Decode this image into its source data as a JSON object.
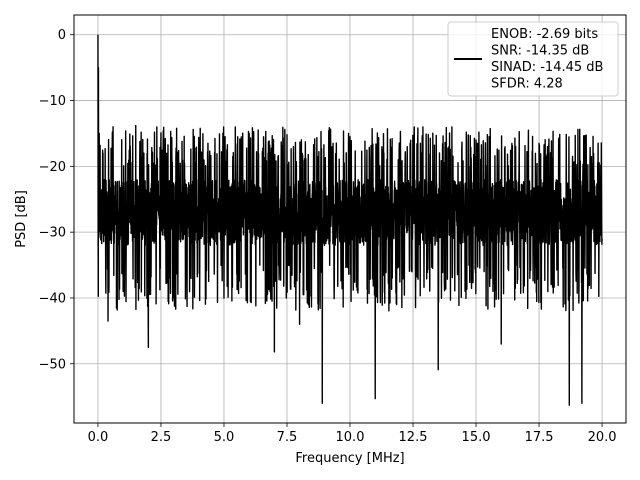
{
  "chart_data": {
    "type": "line",
    "title": "",
    "xlabel": "Frequency [MHz]",
    "ylabel": "PSD [dB]",
    "xlim": [
      -0.95,
      20.95
    ],
    "ylim": [
      -59,
      3
    ],
    "x_ticks": [
      0.0,
      2.5,
      5.0,
      7.5,
      10.0,
      12.5,
      15.0,
      17.5,
      20.0
    ],
    "x_tick_labels": [
      "0.0",
      "2.5",
      "5.0",
      "7.5",
      "10.0",
      "12.5",
      "15.0",
      "17.5",
      "20.0"
    ],
    "y_ticks": [
      0,
      -10,
      -20,
      -30,
      -40,
      -50
    ],
    "y_tick_labels": [
      "0",
      "−10",
      "−20",
      "−30",
      "−40",
      "−50"
    ],
    "grid": true,
    "legend_position": "top-right",
    "series": [
      {
        "name": "ENOB: -2.69 bits\nSNR: -14.35 dB\nSINAD: -14.45 dB\nSFDR: 4.28",
        "color": "#000000",
        "description": "noise-like PSD trace spanning 0 to 20 MHz, starting at 0 dB and fluctuating around -27 dB",
        "x": [
          0.0,
          0.02,
          0.05,
          0.1,
          0.2,
          0.4,
          0.6,
          1.0,
          1.5,
          2.0,
          2.5,
          3.0,
          4.0,
          5.0,
          6.0,
          7.0,
          7.5,
          8.0,
          8.9,
          10.0,
          11.0,
          12.0,
          13.5,
          15.0,
          16.0,
          17.5,
          18.7,
          19.2,
          20.0
        ],
        "y": [
          0.0,
          -5.0,
          -15.0,
          -29.0,
          -18.0,
          -43.5,
          -14.0,
          -39.0,
          -13.8,
          -47.5,
          -14.9,
          -40.0,
          -15.6,
          -40.0,
          -15.0,
          -48.2,
          -15.2,
          -44.0,
          -56.0,
          -15.5,
          -55.3,
          -14.7,
          -50.9,
          -16.0,
          -47.0,
          -16.5,
          -56.3,
          -56.0,
          -31.0
        ]
      }
    ]
  }
}
